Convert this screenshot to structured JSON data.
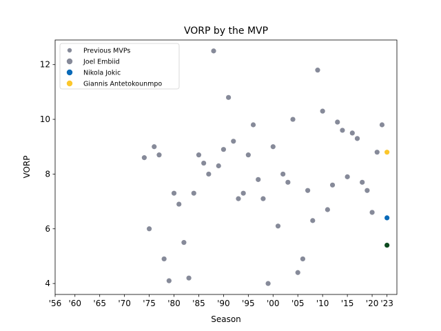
{
  "chart_data": {
    "type": "scatter",
    "title": "VORP by the MVP",
    "xlabel": "Season",
    "ylabel": "VORP",
    "xlim": [
      1956,
      2025
    ],
    "ylim": [
      3.6,
      12.9
    ],
    "xticks": [
      {
        "value": 1956,
        "label": "'56"
      },
      {
        "value": 1960,
        "label": "'60"
      },
      {
        "value": 1965,
        "label": "'65"
      },
      {
        "value": 1970,
        "label": "'70"
      },
      {
        "value": 1975,
        "label": "'75"
      },
      {
        "value": 1980,
        "label": "'80"
      },
      {
        "value": 1985,
        "label": "'85"
      },
      {
        "value": 1990,
        "label": "'90"
      },
      {
        "value": 1995,
        "label": "'95"
      },
      {
        "value": 2000,
        "label": "'00"
      },
      {
        "value": 2005,
        "label": "'05"
      },
      {
        "value": 2010,
        "label": "'10"
      },
      {
        "value": 2015,
        "label": "'15"
      },
      {
        "value": 2020,
        "label": "'20"
      },
      {
        "value": 2023,
        "label": "'23"
      }
    ],
    "yticks": [
      {
        "value": 4,
        "label": "4"
      },
      {
        "value": 6,
        "label": "6"
      },
      {
        "value": 8,
        "label": "8"
      },
      {
        "value": 10,
        "label": "10"
      },
      {
        "value": 12,
        "label": "12"
      }
    ],
    "grid": false,
    "legend_position": "top-left",
    "series": [
      {
        "name": "Previous MVPs",
        "color": "#868a99",
        "points": [
          {
            "x": 1974,
            "y": 8.6
          },
          {
            "x": 1975,
            "y": 6.0
          },
          {
            "x": 1976,
            "y": 9.0
          },
          {
            "x": 1977,
            "y": 8.7
          },
          {
            "x": 1978,
            "y": 4.9
          },
          {
            "x": 1979,
            "y": 4.1
          },
          {
            "x": 1980,
            "y": 7.3
          },
          {
            "x": 1981,
            "y": 6.9
          },
          {
            "x": 1982,
            "y": 5.5
          },
          {
            "x": 1983,
            "y": 4.2
          },
          {
            "x": 1984,
            "y": 7.3
          },
          {
            "x": 1985,
            "y": 8.7
          },
          {
            "x": 1986,
            "y": 8.4
          },
          {
            "x": 1987,
            "y": 8.0
          },
          {
            "x": 1988,
            "y": 12.5
          },
          {
            "x": 1989,
            "y": 8.3
          },
          {
            "x": 1990,
            "y": 8.9
          },
          {
            "x": 1991,
            "y": 10.8
          },
          {
            "x": 1992,
            "y": 9.2
          },
          {
            "x": 1993,
            "y": 7.1
          },
          {
            "x": 1994,
            "y": 7.3
          },
          {
            "x": 1995,
            "y": 8.7
          },
          {
            "x": 1996,
            "y": 9.8
          },
          {
            "x": 1997,
            "y": 7.8
          },
          {
            "x": 1998,
            "y": 7.1
          },
          {
            "x": 1999,
            "y": 4.0
          },
          {
            "x": 2000,
            "y": 9.0
          },
          {
            "x": 2001,
            "y": 6.1
          },
          {
            "x": 2002,
            "y": 8.0
          },
          {
            "x": 2003,
            "y": 7.7
          },
          {
            "x": 2004,
            "y": 10.0
          },
          {
            "x": 2005,
            "y": 4.4
          },
          {
            "x": 2006,
            "y": 4.9
          },
          {
            "x": 2007,
            "y": 7.4
          },
          {
            "x": 2008,
            "y": 6.3
          },
          {
            "x": 2009,
            "y": 11.8
          },
          {
            "x": 2010,
            "y": 10.3
          },
          {
            "x": 2011,
            "y": 6.7
          },
          {
            "x": 2012,
            "y": 7.6
          },
          {
            "x": 2013,
            "y": 9.9
          },
          {
            "x": 2014,
            "y": 9.6
          },
          {
            "x": 2015,
            "y": 7.9
          },
          {
            "x": 2016,
            "y": 9.5
          },
          {
            "x": 2017,
            "y": 9.3
          },
          {
            "x": 2018,
            "y": 7.7
          },
          {
            "x": 2019,
            "y": 7.4
          },
          {
            "x": 2020,
            "y": 6.6
          },
          {
            "x": 2021,
            "y": 8.8
          },
          {
            "x": 2022,
            "y": 9.8
          }
        ]
      },
      {
        "name": "Joel Embiid",
        "color": "#868a99",
        "plot_color": "#0d4a1f",
        "points": [
          {
            "x": 2023,
            "y": 5.4
          }
        ]
      },
      {
        "name": "Nikola Jokic",
        "color": "#0a6ab8",
        "points": [
          {
            "x": 2023,
            "y": 6.4
          }
        ]
      },
      {
        "name": "Giannis Antetokounmpo",
        "color": "#fcc72c",
        "points": [
          {
            "x": 2023,
            "y": 8.8
          }
        ]
      }
    ]
  }
}
